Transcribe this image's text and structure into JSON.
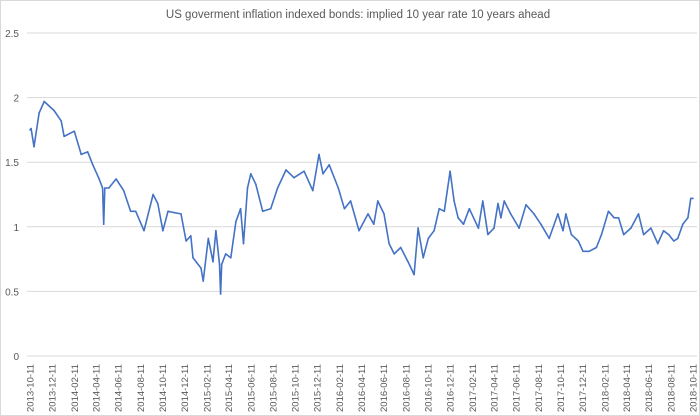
{
  "chart_data": {
    "type": "line",
    "title": "US goverment inflation indexed bonds: implied 10 year rate 10 years ahead",
    "xlabel": "",
    "ylabel": "",
    "ylim": [
      0,
      2.5
    ],
    "yticks": [
      "0",
      "0.5",
      "1",
      "1.5",
      "2",
      "2.5"
    ],
    "xlim": [
      "2013-10-11",
      "2018-10-11"
    ],
    "xticks": [
      "2013-10-11",
      "2013-12-11",
      "2014-02-11",
      "2014-04-11",
      "2014-06-11",
      "2014-08-11",
      "2014-10-11",
      "2014-12-11",
      "2015-02-11",
      "2015-04-11",
      "2015-06-11",
      "2015-08-11",
      "2015-10-11",
      "2015-12-11",
      "2016-02-11",
      "2016-04-11",
      "2016-06-11",
      "2016-08-11",
      "2016-10-11",
      "2016-12-11",
      "2017-02-11",
      "2017-04-11",
      "2017-06-11",
      "2017-08-11",
      "2017-10-11",
      "2017-12-11",
      "2018-02-11",
      "2018-04-11",
      "2018-06-11",
      "2018-08-11",
      "2018-10-11"
    ],
    "grid": true,
    "legend": "none",
    "color": "#4472C4",
    "series": [
      {
        "x": [
          "2013-10-11",
          "2013-10-14",
          "2013-10-22",
          "2013-11-05",
          "2013-11-19",
          "2013-12-16",
          "2014-01-05",
          "2014-01-13",
          "2014-02-10",
          "2014-03-01",
          "2014-03-19",
          "2014-04-02",
          "2014-04-18",
          "2014-04-29",
          "2014-05-02",
          "2014-05-05",
          "2014-05-16",
          "2014-06-05",
          "2014-06-26",
          "2014-07-15",
          "2014-07-29",
          "2014-08-21",
          "2014-09-15",
          "2014-09-28",
          "2014-10-12",
          "2014-10-26",
          "2014-11-12",
          "2014-12-01",
          "2014-12-15",
          "2014-12-28",
          "2015-01-03",
          "2015-01-25",
          "2015-01-31",
          "2015-02-14",
          "2015-02-27",
          "2015-03-07",
          "2015-03-17",
          "2015-03-20",
          "2015-03-23",
          "2015-04-03",
          "2015-04-17",
          "2015-05-01",
          "2015-05-14",
          "2015-05-22",
          "2015-06-02",
          "2015-06-11",
          "2015-06-25",
          "2015-07-14",
          "2015-08-05",
          "2015-08-24",
          "2015-09-16",
          "2015-10-08",
          "2015-11-05",
          "2015-11-29",
          "2015-12-16",
          "2015-12-27",
          "2016-01-13",
          "2016-02-07",
          "2016-02-24",
          "2016-03-12",
          "2016-04-04",
          "2016-04-29",
          "2016-05-15",
          "2016-05-26",
          "2016-06-12",
          "2016-06-26",
          "2016-07-10",
          "2016-07-28",
          "2016-08-17",
          "2016-09-03",
          "2016-09-14",
          "2016-09-28",
          "2016-10-12",
          "2016-10-28",
          "2016-11-11",
          "2016-11-25",
          "2016-12-11",
          "2016-12-22",
          "2017-01-02",
          "2017-01-17",
          "2017-02-02",
          "2017-02-27",
          "2017-03-11",
          "2017-03-25",
          "2017-04-11",
          "2017-04-22",
          "2017-04-30",
          "2017-05-09",
          "2017-05-27",
          "2017-06-19",
          "2017-07-08",
          "2017-07-30",
          "2017-08-18",
          "2017-09-10",
          "2017-10-04",
          "2017-10-18",
          "2017-10-26",
          "2017-11-10",
          "2017-11-29",
          "2017-12-12",
          "2017-12-29",
          "2018-01-18",
          "2018-02-01",
          "2018-02-20",
          "2018-03-08",
          "2018-03-20",
          "2018-04-03",
          "2018-04-23",
          "2018-05-14",
          "2018-05-28",
          "2018-06-17",
          "2018-07-06",
          "2018-07-22",
          "2018-08-05",
          "2018-08-19",
          "2018-08-30",
          "2018-09-13",
          "2018-09-27",
          "2018-10-05",
          "2018-10-11"
        ],
        "y": [
          1.75,
          1.76,
          1.62,
          1.88,
          1.97,
          1.9,
          1.82,
          1.7,
          1.74,
          1.56,
          1.58,
          1.48,
          1.38,
          1.3,
          1.02,
          1.3,
          1.3,
          1.37,
          1.28,
          1.12,
          1.12,
          0.97,
          1.25,
          1.18,
          0.97,
          1.12,
          1.11,
          1.1,
          0.89,
          0.93,
          0.76,
          0.68,
          0.58,
          0.91,
          0.73,
          0.97,
          0.71,
          0.48,
          0.71,
          0.79,
          0.76,
          1.04,
          1.14,
          0.87,
          1.3,
          1.41,
          1.33,
          1.12,
          1.14,
          1.3,
          1.44,
          1.38,
          1.43,
          1.28,
          1.56,
          1.41,
          1.48,
          1.3,
          1.14,
          1.2,
          0.97,
          1.1,
          1.02,
          1.2,
          1.1,
          0.87,
          0.79,
          0.84,
          0.73,
          0.63,
          0.99,
          0.76,
          0.91,
          0.97,
          1.14,
          1.12,
          1.43,
          1.2,
          1.07,
          1.02,
          1.14,
          0.99,
          1.2,
          0.94,
          0.99,
          1.18,
          1.07,
          1.2,
          1.1,
          0.99,
          1.17,
          1.1,
          1.02,
          0.91,
          1.1,
          0.97,
          1.1,
          0.94,
          0.89,
          0.81,
          0.81,
          0.84,
          0.94,
          1.12,
          1.07,
          1.07,
          0.94,
          0.99,
          1.1,
          0.94,
          0.99,
          0.87,
          0.97,
          0.94,
          0.89,
          0.91,
          1.02,
          1.07,
          1.22,
          1.22
        ]
      }
    ]
  }
}
